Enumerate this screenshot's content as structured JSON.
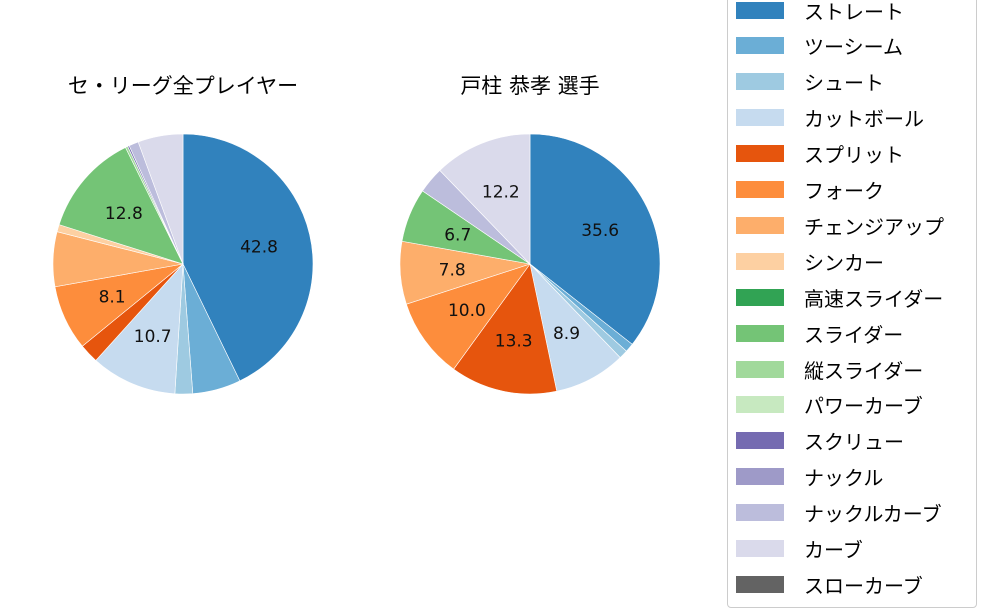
{
  "chart_data": [
    {
      "type": "pie",
      "title": "セ・リーグ全プレイヤー",
      "start_angle": 90,
      "direction": "clockwise",
      "categories": [
        "ストレート",
        "ツーシーム",
        "シュート",
        "カットボール",
        "スプリット",
        "フォーク",
        "チェンジアップ",
        "シンカー",
        "スライダー",
        "縦スライダー",
        "スクリュー",
        "ナックルカーブ",
        "カーブ"
      ],
      "values": [
        42.8,
        6.0,
        2.2,
        10.7,
        2.4,
        8.1,
        6.8,
        0.9,
        12.8,
        0.3,
        0.2,
        1.2,
        5.6
      ],
      "labels_shown": [
        "42.8",
        "",
        "",
        "10.7",
        "",
        "8.1",
        "",
        "",
        "12.8",
        "",
        "",
        "",
        ""
      ],
      "colors": [
        "#3182bd",
        "#6baed6",
        "#9ecae1",
        "#c6dbef",
        "#e6550d",
        "#fd8d3c",
        "#fdae6b",
        "#fdd0a2",
        "#74c476",
        "#a1d99b",
        "#756bb1",
        "#bcbddc",
        "#dadaeb"
      ]
    },
    {
      "type": "pie",
      "title": "戸柱 恭孝  選手",
      "start_angle": 90,
      "direction": "clockwise",
      "categories": [
        "ストレート",
        "ツーシーム",
        "シュート",
        "カットボール",
        "スプリット",
        "フォーク",
        "チェンジアップ",
        "スライダー",
        "ナックルカーブ",
        "カーブ"
      ],
      "values": [
        35.6,
        1.1,
        1.1,
        8.9,
        13.3,
        10.0,
        7.8,
        6.7,
        3.3,
        12.2
      ],
      "labels_shown": [
        "35.6",
        "",
        "",
        "8.9",
        "13.3",
        "10.0",
        "7.8",
        "6.7",
        "",
        "12.2"
      ],
      "colors": [
        "#3182bd",
        "#6baed6",
        "#9ecae1",
        "#c6dbef",
        "#e6550d",
        "#fd8d3c",
        "#fdae6b",
        "#74c476",
        "#bcbddc",
        "#dadaeb"
      ]
    }
  ],
  "titles": {
    "left": "セ・リーグ全プレイヤー",
    "right": "戸柱 恭孝  選手"
  },
  "legend": {
    "position": "right",
    "items": [
      {
        "label": "ストレート",
        "color": "#3182bd"
      },
      {
        "label": "ツーシーム",
        "color": "#6baed6"
      },
      {
        "label": "シュート",
        "color": "#9ecae1"
      },
      {
        "label": "カットボール",
        "color": "#c6dbef"
      },
      {
        "label": "スプリット",
        "color": "#e6550d"
      },
      {
        "label": "フォーク",
        "color": "#fd8d3c"
      },
      {
        "label": "チェンジアップ",
        "color": "#fdae6b"
      },
      {
        "label": "シンカー",
        "color": "#fdd0a2"
      },
      {
        "label": "高速スライダー",
        "color": "#31a354"
      },
      {
        "label": "スライダー",
        "color": "#74c476"
      },
      {
        "label": "縦スライダー",
        "color": "#a1d99b"
      },
      {
        "label": "パワーカーブ",
        "color": "#c7e9c0"
      },
      {
        "label": "スクリュー",
        "color": "#756bb1"
      },
      {
        "label": "ナックル",
        "color": "#9e9ac8"
      },
      {
        "label": "ナックルカーブ",
        "color": "#bcbddc"
      },
      {
        "label": "カーブ",
        "color": "#dadaeb"
      },
      {
        "label": "スローカーブ",
        "color": "#636363"
      }
    ]
  }
}
